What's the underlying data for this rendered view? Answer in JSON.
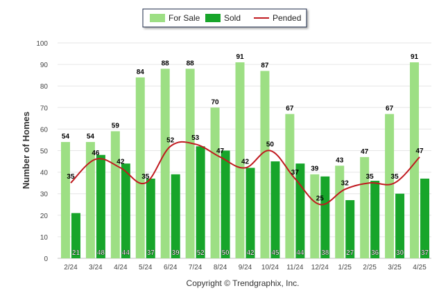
{
  "chart_data": {
    "type": "bar",
    "categories": [
      "2/24",
      "3/24",
      "4/24",
      "5/24",
      "6/24",
      "7/24",
      "8/24",
      "9/24",
      "10/24",
      "11/24",
      "12/24",
      "1/25",
      "2/25",
      "3/25",
      "4/25"
    ],
    "series": [
      {
        "name": "For Sale",
        "type": "bar",
        "color": "#9ddf84",
        "values": [
          54,
          54,
          59,
          84,
          88,
          88,
          70,
          91,
          87,
          67,
          39,
          43,
          47,
          67,
          91
        ]
      },
      {
        "name": "Sold",
        "type": "bar",
        "color": "#17a52a",
        "values": [
          21,
          48,
          44,
          37,
          39,
          52,
          50,
          42,
          45,
          44,
          38,
          27,
          36,
          30,
          37
        ]
      },
      {
        "name": "Pended",
        "type": "line",
        "color": "#c0191f",
        "values": [
          35,
          46,
          42,
          35,
          52,
          53,
          47,
          42,
          50,
          37,
          25,
          32,
          35,
          35,
          47
        ]
      }
    ],
    "ylabel": "Number of Homes",
    "xlabel": "",
    "ylim": [
      0,
      100
    ],
    "yticks": [
      0,
      10,
      20,
      30,
      40,
      50,
      60,
      70,
      80,
      90,
      100
    ],
    "grid": true,
    "legend_position": "top-center",
    "footer": "Copyright © Trendgraphix, Inc."
  }
}
